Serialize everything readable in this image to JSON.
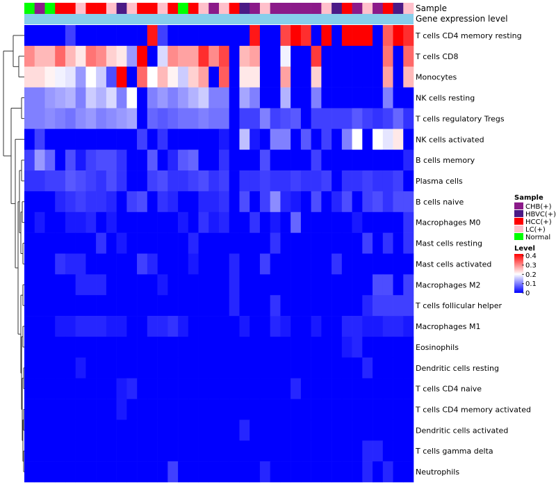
{
  "chart_data": {
    "type": "heatmap",
    "title": "",
    "annotations": [
      {
        "name": "Sample",
        "type": "categorical"
      },
      {
        "name": "Gene expression level",
        "type": "continuous"
      }
    ],
    "sample_groups": [
      "Normal",
      "CHB(+)",
      "Normal",
      "HCC(+)",
      "HCC(+)",
      "LC(+)",
      "HCC(+)",
      "HCC(+)",
      "LC(+)",
      "HBVC(+)",
      "LC(+)",
      "HCC(+)",
      "HCC(+)",
      "LC(+)",
      "HCC(+)",
      "Normal",
      "HCC(+)",
      "LC(+)",
      "CHB(+)",
      "LC(+)",
      "HCC(+)",
      "HBVC(+)",
      "CHB(+)",
      "LC(+)",
      "CHB(+)",
      "CHB(+)",
      "CHB(+)",
      "CHB(+)",
      "CHB(+)",
      "LC(+)",
      "HBVC(+)",
      "HCC(+)",
      "CHB(+)",
      "LC(+)",
      "CHB(+)",
      "HCC(+)",
      "HBVC(+)",
      "LC(+)"
    ],
    "rows": [
      "T cells CD4 memory resting",
      "T cells CD8",
      "Monocytes",
      "NK cells resting",
      "T cells regulatory  Tregs",
      "NK cells activated",
      "B cells memory",
      "Plasma cells",
      "B cells naive",
      "Macrophages M0",
      "Mast cells resting",
      "Mast cells activated",
      "Macrophages M2",
      "T cells follicular helper",
      "Macrophages M1",
      "Eosinophils",
      "Dendritic cells resting",
      "T cells CD4 naive",
      "T cells CD4 memory activated",
      "Dendritic cells activated",
      "T cells gamma delta",
      "Neutrophils"
    ],
    "values": [
      [
        0.0,
        0.0,
        0.0,
        0.0,
        0.05,
        0.0,
        0.0,
        0.0,
        0.0,
        0.0,
        0.0,
        0.0,
        0.4,
        0.05,
        0.0,
        0.0,
        0.0,
        0.0,
        0.0,
        0.0,
        0.0,
        0.0,
        0.4,
        0.0,
        0.0,
        0.36,
        0.42,
        0.38,
        0.0,
        0.42,
        0.0,
        0.42,
        0.42,
        0.42,
        0.0,
        0.34,
        0.42,
        0.38
      ],
      [
        0.3,
        0.26,
        0.26,
        0.33,
        0.26,
        0.22,
        0.32,
        0.3,
        0.24,
        0.22,
        0.12,
        0.42,
        0.0,
        0.17,
        0.3,
        0.28,
        0.28,
        0.38,
        0.3,
        0.36,
        0.0,
        0.26,
        0.28,
        0.0,
        0.0,
        0.19,
        0.0,
        0.0,
        0.37,
        0.0,
        0.0,
        0.0,
        0.0,
        0.0,
        0.0,
        0.32,
        0.0,
        0.33
      ],
      [
        0.23,
        0.23,
        0.21,
        0.19,
        0.18,
        0.12,
        0.2,
        0.16,
        0.06,
        0.42,
        0.0,
        0.33,
        0.2,
        0.26,
        0.21,
        0.16,
        0.24,
        0.28,
        0.0,
        0.34,
        0.0,
        0.22,
        0.22,
        0.0,
        0.0,
        0.28,
        0.0,
        0.0,
        0.24,
        0.0,
        0.0,
        0.0,
        0.0,
        0.0,
        0.0,
        0.28,
        0.0,
        0.26
      ],
      [
        0.1,
        0.1,
        0.12,
        0.13,
        0.14,
        0.1,
        0.16,
        0.14,
        0.17,
        0.1,
        0.2,
        0.0,
        0.1,
        0.12,
        0.1,
        0.12,
        0.14,
        0.16,
        0.1,
        0.1,
        0.0,
        0.13,
        0.1,
        0.0,
        0.0,
        0.14,
        0.0,
        0.0,
        0.1,
        0.0,
        0.0,
        0.0,
        0.0,
        0.0,
        0.0,
        0.1,
        0.0,
        0.0
      ],
      [
        0.1,
        0.1,
        0.11,
        0.1,
        0.09,
        0.11,
        0.12,
        0.1,
        0.11,
        0.12,
        0.13,
        0.0,
        0.08,
        0.07,
        0.08,
        0.09,
        0.09,
        0.1,
        0.09,
        0.09,
        0.0,
        0.05,
        0.05,
        0.1,
        0.05,
        0.06,
        0.07,
        0.0,
        0.05,
        0.05,
        0.05,
        0.05,
        0.07,
        0.05,
        0.04,
        0.05,
        0.08,
        0.04
      ],
      [
        0.0,
        0.05,
        0.0,
        0.0,
        0.0,
        0.0,
        0.0,
        0.0,
        0.0,
        0.0,
        0.0,
        0.05,
        0.0,
        0.04,
        0.0,
        0.0,
        0.0,
        0.0,
        0.0,
        0.02,
        0.0,
        0.15,
        0.02,
        0.0,
        0.1,
        0.1,
        0.0,
        0.07,
        0.0,
        0.05,
        0.0,
        0.1,
        0.2,
        0.0,
        0.2,
        0.18,
        0.22,
        0.0
      ],
      [
        0.05,
        0.12,
        0.08,
        0.0,
        0.06,
        0.02,
        0.05,
        0.06,
        0.06,
        0.04,
        0.0,
        0.0,
        0.07,
        0.0,
        0.03,
        0.07,
        0.08,
        0.0,
        0.0,
        0.04,
        0.0,
        0.0,
        0.0,
        0.06,
        0.0,
        0.0,
        0.0,
        0.0,
        0.05,
        0.0,
        0.0,
        0.0,
        0.0,
        0.0,
        0.0,
        0.0,
        0.0,
        0.03
      ],
      [
        0.04,
        0.04,
        0.05,
        0.05,
        0.07,
        0.06,
        0.05,
        0.04,
        0.06,
        0.04,
        0.0,
        0.0,
        0.05,
        0.06,
        0.04,
        0.04,
        0.05,
        0.06,
        0.04,
        0.05,
        0.0,
        0.04,
        0.04,
        0.05,
        0.04,
        0.04,
        0.05,
        0.04,
        0.04,
        0.05,
        0.0,
        0.04,
        0.04,
        0.05,
        0.04,
        0.04,
        0.05,
        0.0
      ],
      [
        0.0,
        0.0,
        0.0,
        0.03,
        0.04,
        0.05,
        0.04,
        0.04,
        0.03,
        0.0,
        0.05,
        0.06,
        0.0,
        0.04,
        0.03,
        0.0,
        0.0,
        0.03,
        0.03,
        0.04,
        0.0,
        0.06,
        0.0,
        0.05,
        0.11,
        0.03,
        0.02,
        0.0,
        0.06,
        0.0,
        0.03,
        0.06,
        0.0,
        0.05,
        0.06,
        0.04,
        0.06,
        0.06
      ],
      [
        0.0,
        0.02,
        0.0,
        0.0,
        0.02,
        0.02,
        0.03,
        0.0,
        0.02,
        0.0,
        0.0,
        0.0,
        0.0,
        0.0,
        0.0,
        0.02,
        0.0,
        0.04,
        0.02,
        0.03,
        0.0,
        0.0,
        0.04,
        0.0,
        0.02,
        0.0,
        0.08,
        0.0,
        0.0,
        0.0,
        0.0,
        0.0,
        0.02,
        0.0,
        0.0,
        0.0,
        0.0,
        0.04
      ],
      [
        0.0,
        0.0,
        0.0,
        0.0,
        0.0,
        0.0,
        0.0,
        0.04,
        0.0,
        0.02,
        0.0,
        0.0,
        0.0,
        0.0,
        0.0,
        0.0,
        0.03,
        0.0,
        0.0,
        0.0,
        0.0,
        0.0,
        0.0,
        0.0,
        0.04,
        0.0,
        0.0,
        0.0,
        0.0,
        0.0,
        0.0,
        0.0,
        0.0,
        0.05,
        0.0,
        0.04,
        0.0,
        0.04
      ],
      [
        0.0,
        0.0,
        0.0,
        0.04,
        0.03,
        0.03,
        0.0,
        0.0,
        0.0,
        0.0,
        0.0,
        0.05,
        0.03,
        0.0,
        0.0,
        0.0,
        0.02,
        0.0,
        0.0,
        0.0,
        0.03,
        0.0,
        0.0,
        0.05,
        0.0,
        0.0,
        0.0,
        0.0,
        0.0,
        0.0,
        0.04,
        0.0,
        0.0,
        0.0,
        0.0,
        0.0,
        0.0,
        0.0
      ],
      [
        0.0,
        0.0,
        0.0,
        0.0,
        0.0,
        0.03,
        0.03,
        0.03,
        0.0,
        0.0,
        0.0,
        0.0,
        0.0,
        0.02,
        0.0,
        0.0,
        0.0,
        0.0,
        0.0,
        0.0,
        0.03,
        0.0,
        0.0,
        0.0,
        0.0,
        0.0,
        0.0,
        0.0,
        0.0,
        0.0,
        0.0,
        0.0,
        0.0,
        0.0,
        0.06,
        0.06,
        0.0,
        0.05
      ],
      [
        0.0,
        0.0,
        0.0,
        0.0,
        0.0,
        0.0,
        0.0,
        0.0,
        0.0,
        0.0,
        0.0,
        0.0,
        0.0,
        0.0,
        0.0,
        0.0,
        0.0,
        0.0,
        0.0,
        0.0,
        0.03,
        0.0,
        0.0,
        0.0,
        0.04,
        0.0,
        0.0,
        0.0,
        0.0,
        0.0,
        0.0,
        0.0,
        0.0,
        0.03,
        0.05,
        0.05,
        0.05,
        0.05
      ],
      [
        0.0,
        0.0,
        0.0,
        0.02,
        0.02,
        0.03,
        0.03,
        0.03,
        0.02,
        0.02,
        0.0,
        0.0,
        0.03,
        0.03,
        0.04,
        0.02,
        0.0,
        0.0,
        0.0,
        0.0,
        0.0,
        0.02,
        0.0,
        0.0,
        0.03,
        0.02,
        0.0,
        0.0,
        0.02,
        0.0,
        0.0,
        0.03,
        0.03,
        0.02,
        0.02,
        0.03,
        0.03,
        0.02
      ],
      [
        0.0,
        0.0,
        0.0,
        0.0,
        0.0,
        0.0,
        0.0,
        0.0,
        0.0,
        0.0,
        0.0,
        0.0,
        0.0,
        0.0,
        0.0,
        0.0,
        0.0,
        0.0,
        0.0,
        0.0,
        0.0,
        0.0,
        0.0,
        0.0,
        0.0,
        0.0,
        0.0,
        0.0,
        0.0,
        0.0,
        0.0,
        0.02,
        0.03,
        0.0,
        0.0,
        0.0,
        0.0,
        0.0
      ],
      [
        0.0,
        0.0,
        0.0,
        0.0,
        0.0,
        0.02,
        0.0,
        0.0,
        0.0,
        0.0,
        0.0,
        0.0,
        0.0,
        0.0,
        0.0,
        0.0,
        0.0,
        0.0,
        0.0,
        0.0,
        0.0,
        0.0,
        0.0,
        0.0,
        0.0,
        0.0,
        0.0,
        0.0,
        0.0,
        0.0,
        0.0,
        0.0,
        0.0,
        0.03,
        0.0,
        0.0,
        0.0,
        0.0
      ],
      [
        0.0,
        0.0,
        0.0,
        0.0,
        0.0,
        0.0,
        0.0,
        0.0,
        0.0,
        0.02,
        0.03,
        0.0,
        0.0,
        0.0,
        0.0,
        0.0,
        0.0,
        0.0,
        0.0,
        0.0,
        0.0,
        0.0,
        0.0,
        0.0,
        0.0,
        0.0,
        0.03,
        0.0,
        0.0,
        0.0,
        0.0,
        0.0,
        0.0,
        0.0,
        0.0,
        0.0,
        0.0,
        0.0
      ],
      [
        0.0,
        0.0,
        0.0,
        0.0,
        0.0,
        0.0,
        0.0,
        0.0,
        0.0,
        0.02,
        0.0,
        0.0,
        0.0,
        0.0,
        0.0,
        0.0,
        0.0,
        0.0,
        0.0,
        0.0,
        0.0,
        0.0,
        0.0,
        0.0,
        0.0,
        0.0,
        0.0,
        0.0,
        0.0,
        0.0,
        0.0,
        0.0,
        0.0,
        0.0,
        0.0,
        0.0,
        0.0,
        0.0
      ],
      [
        0.0,
        0.0,
        0.0,
        0.0,
        0.0,
        0.0,
        0.0,
        0.0,
        0.0,
        0.0,
        0.0,
        0.0,
        0.0,
        0.0,
        0.0,
        0.0,
        0.0,
        0.0,
        0.0,
        0.0,
        0.0,
        0.03,
        0.0,
        0.0,
        0.0,
        0.0,
        0.0,
        0.0,
        0.0,
        0.0,
        0.0,
        0.0,
        0.0,
        0.0,
        0.0,
        0.0,
        0.0,
        0.0
      ],
      [
        0.0,
        0.0,
        0.0,
        0.0,
        0.0,
        0.0,
        0.0,
        0.0,
        0.0,
        0.0,
        0.0,
        0.0,
        0.0,
        0.0,
        0.0,
        0.0,
        0.0,
        0.0,
        0.0,
        0.0,
        0.0,
        0.0,
        0.0,
        0.0,
        0.0,
        0.0,
        0.0,
        0.0,
        0.0,
        0.0,
        0.0,
        0.0,
        0.0,
        0.03,
        0.03,
        0.0,
        0.0,
        0.0
      ],
      [
        0.0,
        0.0,
        0.0,
        0.0,
        0.0,
        0.0,
        0.0,
        0.0,
        0.0,
        0.0,
        0.0,
        0.0,
        0.0,
        0.0,
        0.05,
        0.0,
        0.0,
        0.0,
        0.0,
        0.0,
        0.0,
        0.0,
        0.0,
        0.03,
        0.0,
        0.0,
        0.0,
        0.0,
        0.0,
        0.0,
        0.0,
        0.0,
        0.0,
        0.03,
        0.0,
        0.03,
        0.0,
        0.0
      ]
    ],
    "gene_expression_level": 0.5,
    "sample_colors": {
      "CHB(+)": "#8B1A89",
      "HBVC(+)": "#4B1A86",
      "HCC(+)": "#FF0000",
      "LC(+)": "#FFC0CB",
      "Normal": "#00FF00"
    },
    "gene_expression_color": "#87CEEB",
    "legend": {
      "sample_title": "Sample",
      "sample_items": [
        "CHB(+)",
        "HBVC(+)",
        "HCC(+)",
        "LC(+)",
        "Normal"
      ],
      "level_title": "Level",
      "level_ticks": [
        "0.4",
        "0.3",
        "0.2",
        "0.1",
        "0"
      ],
      "level_tick_values": [
        0.4,
        0.3,
        0.2,
        0.1,
        0
      ],
      "range": [
        0,
        0.42
      ],
      "placement": "right"
    },
    "color_scale": {
      "low": "#0000FF",
      "mid": "#FFFFFF",
      "high": "#FF0000",
      "mid_value": 0.2
    }
  }
}
